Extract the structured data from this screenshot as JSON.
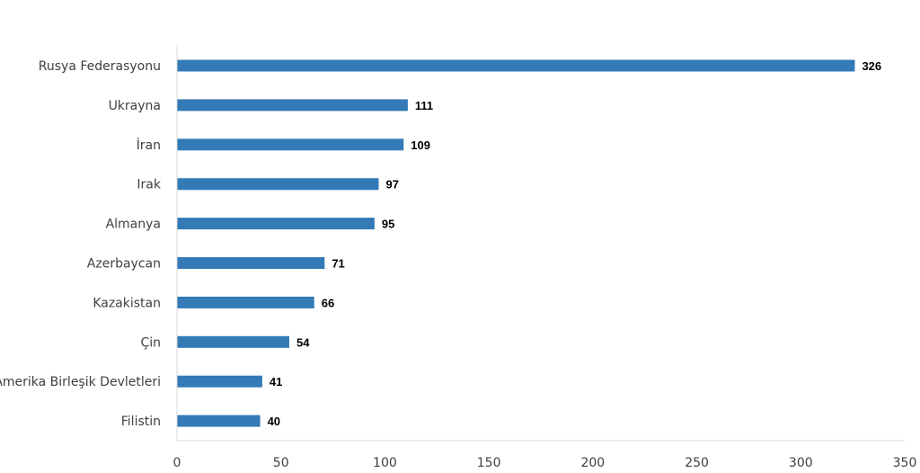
{
  "chart_data": {
    "type": "bar",
    "orientation": "horizontal",
    "categories": [
      "Rusya Federasyonu",
      "Ukrayna",
      "İran",
      "Irak",
      "Almanya",
      "Azerbaycan",
      "Kazakistan",
      "Çin",
      "Amerika Birleşik Devletleri",
      "Filistin"
    ],
    "values": [
      326,
      111,
      109,
      97,
      95,
      71,
      66,
      54,
      41,
      40
    ],
    "data_labels": [
      "326",
      "111",
      "109",
      "97",
      "95",
      "71",
      "66",
      "54",
      "41",
      "40"
    ],
    "xlim": [
      0,
      350
    ],
    "xticks": [
      "0",
      "50",
      "100",
      "150",
      "200",
      "250",
      "300",
      "350"
    ],
    "grid": false,
    "legend": "none",
    "colors": {
      "bar": "#337AB7",
      "axis": "#D9D9D9"
    }
  }
}
